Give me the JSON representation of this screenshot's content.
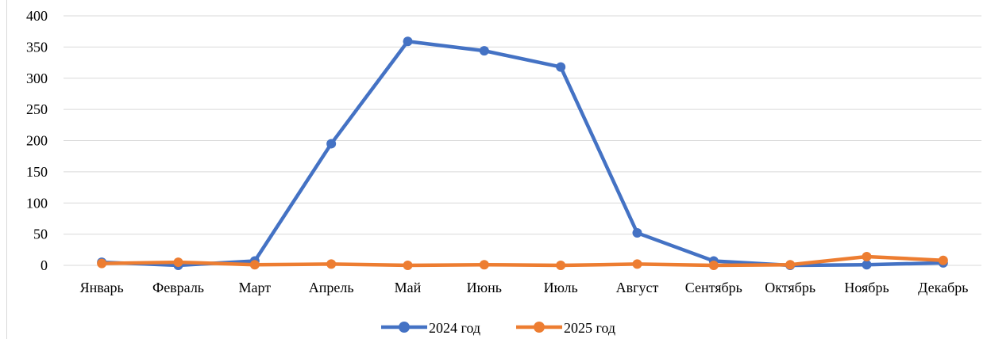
{
  "chart_data": {
    "type": "line",
    "categories": [
      "Январь",
      "Февраль",
      "Март",
      "Апрель",
      "Май",
      "Июнь",
      "Июль",
      "Август",
      "Сентябрь",
      "Октябрь",
      "Ноябрь",
      "Декабрь"
    ],
    "series": [
      {
        "name": "2024 год",
        "color": "#4472C4",
        "values": [
          5,
          0,
          7,
          195,
          359,
          344,
          318,
          52,
          7,
          0,
          1,
          4
        ]
      },
      {
        "name": "2025 год",
        "color": "#ED7D31",
        "values": [
          3,
          5,
          1,
          2,
          0,
          1,
          0,
          2,
          0,
          1,
          14,
          8
        ]
      }
    ],
    "ylim": [
      0,
      400
    ],
    "yticks": [
      0,
      50,
      100,
      150,
      200,
      250,
      300,
      350,
      400
    ],
    "grid": true,
    "legend": "bottom-center",
    "title": "",
    "xlabel": "",
    "ylabel": ""
  }
}
